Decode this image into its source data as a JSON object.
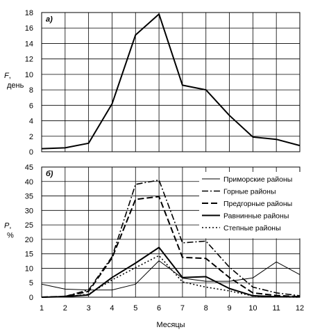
{
  "chart_data": [
    {
      "type": "line",
      "panel_label": "а)",
      "ylabel_symbol": "F",
      "ylabel_unit": ", день",
      "xlim": [
        1,
        12
      ],
      "ylim": [
        0,
        18
      ],
      "yticks": [
        0,
        2,
        4,
        6,
        8,
        10,
        12,
        14,
        16,
        18
      ],
      "grid": true,
      "series": [
        {
          "x": [
            1,
            2,
            3,
            4,
            5,
            6,
            7,
            8,
            9,
            10,
            11,
            12
          ],
          "values": [
            0.4,
            0.5,
            1.1,
            6.2,
            15.1,
            17.8,
            8.6,
            8.0,
            4.7,
            1.9,
            1.6,
            0.8
          ],
          "style": "solid",
          "width": 2
        }
      ]
    },
    {
      "type": "line",
      "panel_label": "б)",
      "ylabel_symbol": "P",
      "ylabel_unit": ", %",
      "xlabel": "Месяцы",
      "xlim": [
        1,
        12
      ],
      "ylim": [
        0,
        45
      ],
      "yticks": [
        0,
        5,
        10,
        15,
        20,
        25,
        30,
        35,
        40,
        45
      ],
      "xticks": [
        1,
        2,
        3,
        4,
        5,
        6,
        7,
        8,
        9,
        10,
        11,
        12
      ],
      "grid": true,
      "legend_position": "top-right",
      "series": [
        {
          "name": "Приморские районы",
          "x": [
            1,
            2,
            3,
            4,
            5,
            6,
            7,
            8,
            9,
            10,
            11,
            12
          ],
          "values": [
            4.5,
            2.8,
            2.5,
            2.5,
            4.5,
            12.6,
            6.6,
            5.5,
            5.5,
            6.7,
            12.2,
            7.8
          ],
          "style": "solid",
          "width": 1
        },
        {
          "name": "Горные районы",
          "x": [
            1,
            2,
            3,
            4,
            5,
            6,
            7,
            8,
            9,
            10,
            11,
            12
          ],
          "values": [
            0,
            0.3,
            2.5,
            14.0,
            39.0,
            40.5,
            18.8,
            19.4,
            10.4,
            3.5,
            1.5,
            0.5
          ],
          "style": "dashdot",
          "width": 1.6
        },
        {
          "name": "Предгорные районы",
          "x": [
            1,
            2,
            3,
            4,
            5,
            6,
            7,
            8,
            9,
            10,
            11,
            12
          ],
          "values": [
            0,
            0.3,
            2.0,
            13.6,
            33.8,
            34.8,
            13.8,
            13.4,
            6.8,
            1.5,
            0.6,
            0.2
          ],
          "style": "dashed",
          "width": 2
        },
        {
          "name": "Равнинные районы",
          "x": [
            1,
            2,
            3,
            4,
            5,
            6,
            7,
            8,
            9,
            10,
            11,
            12
          ],
          "values": [
            0,
            0.2,
            0.8,
            6.8,
            11.8,
            17.2,
            6.8,
            7.1,
            3.0,
            0.5,
            0.2,
            0.1
          ],
          "style": "solid",
          "width": 2
        },
        {
          "name": "Степные районы",
          "x": [
            1,
            2,
            3,
            4,
            5,
            6,
            7,
            8,
            9,
            10,
            11,
            12
          ],
          "values": [
            0,
            0.2,
            1.0,
            6.0,
            10.2,
            14.4,
            5.3,
            3.5,
            2.2,
            0.4,
            0.1,
            0
          ],
          "style": "dotted",
          "width": 1.6
        }
      ]
    }
  ]
}
